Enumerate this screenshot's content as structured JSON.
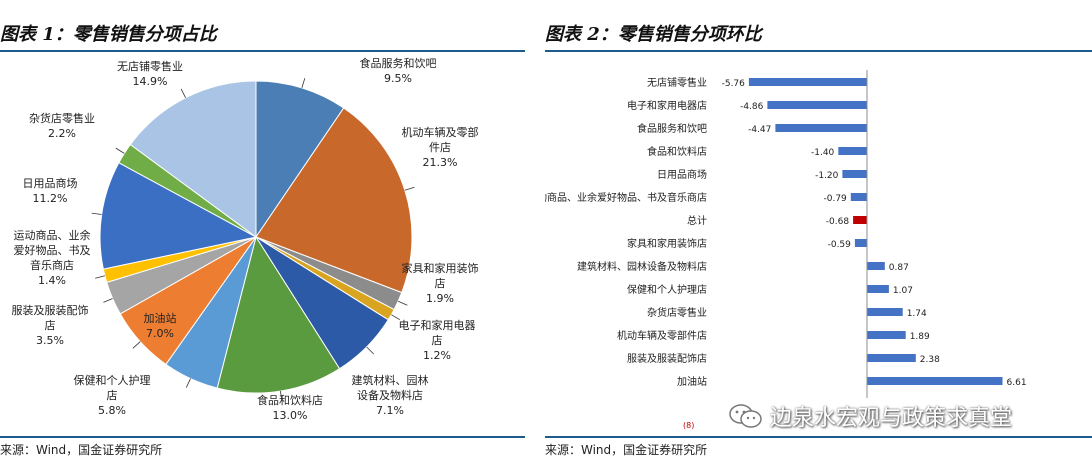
{
  "panel1": {
    "title": "图表 1：零售销售分项占比",
    "source": "来源：Wind，国金证券研究所"
  },
  "panel2": {
    "title": "图表 2：零售销售分项环比",
    "source": "来源：Wind，国金证券研究所",
    "footnote_mark": "(8)"
  },
  "watermark": {
    "text": "边泉水宏观与政策求真堂",
    "icon": "wechat-icon"
  },
  "chart_data": [
    {
      "type": "pie",
      "slices": [
        {
          "label": "食品服务和饮吧",
          "value": 9.5,
          "display": "9.5%",
          "color": "#4a7eb5"
        },
        {
          "label": "机动车辆及零部件店",
          "value": 21.3,
          "display": "21.3%",
          "color": "#c8692b"
        },
        {
          "label": "家具和家用装饰店",
          "value": 1.9,
          "display": "1.9%",
          "color": "#8c8c8c"
        },
        {
          "label": "电子和家用电器店",
          "value": 1.2,
          "display": "1.2%",
          "color": "#d9a520"
        },
        {
          "label": "建筑材料、园林设备及物料店",
          "value": 7.1,
          "display": "7.1%",
          "color": "#2d5aa6"
        },
        {
          "label": "食品和饮料店",
          "value": 13.0,
          "display": "13.0%",
          "color": "#5a9b3f"
        },
        {
          "label": "保健和个人护理店",
          "value": 5.8,
          "display": "5.8%",
          "color": "#5b9bd5"
        },
        {
          "label": "加油站",
          "value": 7.0,
          "display": "7.0%",
          "color": "#ed7d31"
        },
        {
          "label": "服装及服装配饰店",
          "value": 3.5,
          "display": "3.5%",
          "color": "#a5a5a5"
        },
        {
          "label": "运动商品、业余爱好物品、书及音乐商店",
          "value": 1.4,
          "display": "1.4%",
          "color": "#ffc000"
        },
        {
          "label": "日用品商场",
          "value": 11.2,
          "display": "11.2%",
          "color": "#3a6fc4"
        },
        {
          "label": "杂货店零售业",
          "value": 2.2,
          "display": "2.2%",
          "color": "#70ad47"
        },
        {
          "label": "无店铺零售业",
          "value": 14.9,
          "display": "14.9%",
          "color": "#a9c4e4"
        }
      ]
    },
    {
      "type": "bar",
      "orientation": "horizontal",
      "categories": [
        "无店铺零售业",
        "电子和家用电器店",
        "食品服务和饮吧",
        "食品和饮料店",
        "日用品商场",
        "运动商品、业余爱好物品、书及音乐商店",
        "总计",
        "家具和家用装饰店",
        "建筑材料、园林设备及物料店",
        "保健和个人护理店",
        "杂货店零售业",
        "机动车辆及零部件店",
        "服装及服装配饰店",
        "加油站"
      ],
      "values": [
        -5.76,
        -4.86,
        -4.47,
        -1.4,
        -1.2,
        -0.79,
        -0.68,
        -0.59,
        0.87,
        1.07,
        1.74,
        1.89,
        2.38,
        6.61
      ],
      "labels": [
        "-5.76",
        "-4.86",
        "-4.47",
        "-1.40",
        "-1.20",
        "-0.79",
        "-0.68",
        "-0.59",
        "0.87",
        "1.07",
        "1.74",
        "1.89",
        "2.38",
        "6.61"
      ],
      "bar_color": "#4472c4",
      "highlight_category": "总计",
      "highlight_color": "#c00000",
      "xlim": [
        -6.5,
        7.0
      ]
    }
  ]
}
